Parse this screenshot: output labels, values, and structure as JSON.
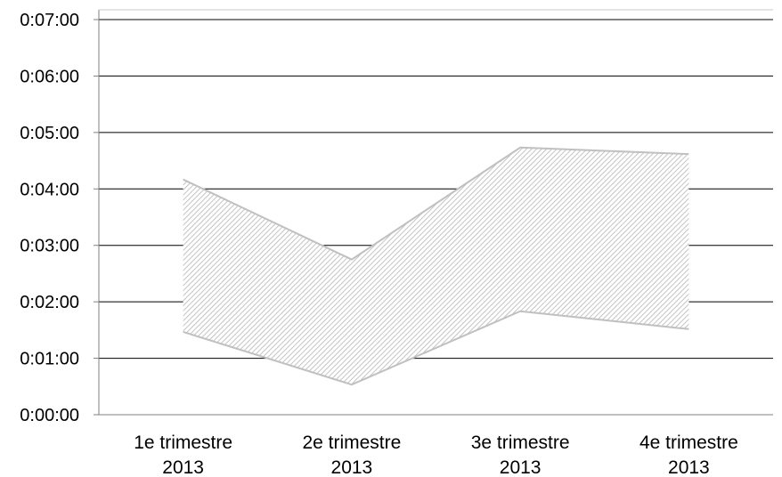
{
  "chart_data": {
    "type": "area",
    "categories": [
      [
        "1e trimestre",
        "2013"
      ],
      [
        "2e trimestre",
        "2013"
      ],
      [
        "3e trimestre",
        "2013"
      ],
      [
        "4e trimestre",
        "2013"
      ]
    ],
    "y_tick_labels": [
      "0:00:00",
      "0:01:00",
      "0:02:00",
      "0:03:00",
      "0:04:00",
      "0:05:00",
      "0:06:00",
      "0:07:00"
    ],
    "ylim_seconds": [
      0,
      420
    ],
    "series": [
      {
        "role": "lower",
        "values_seconds": [
          88,
          32,
          110,
          91
        ]
      },
      {
        "role": "upper",
        "values_seconds": [
          250,
          165,
          284,
          277
        ]
      }
    ],
    "grid": true,
    "legend": "none",
    "colors": {
      "band_hatch": "#b5b5b5",
      "band_edge": "#c0c0c0",
      "gridline": "#000000",
      "axis": "#808080"
    }
  }
}
